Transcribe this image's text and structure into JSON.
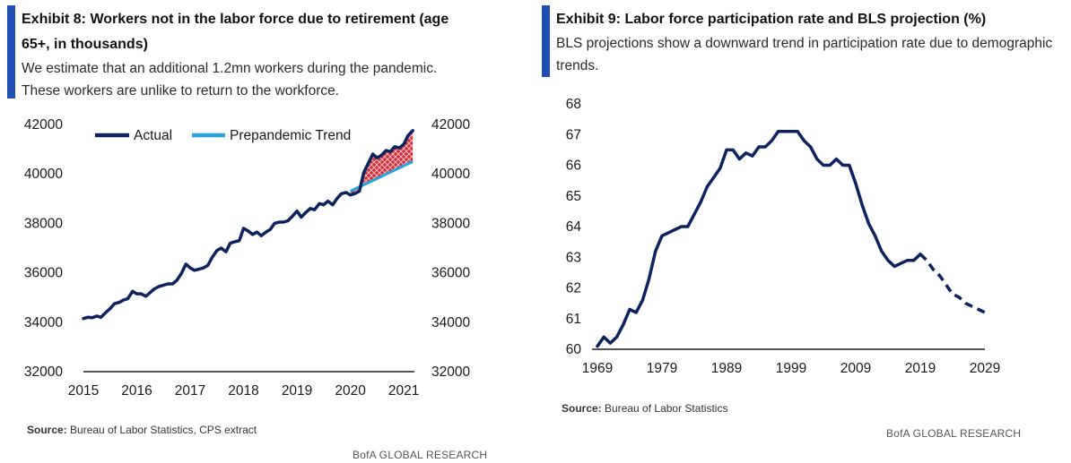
{
  "exhibit8": {
    "title": "Exhibit 8: Workers not in the labor force due to retirement (age 65+, in thousands)",
    "subtitle": "We estimate that an additional 1.2mn workers during the pandemic. These workers are unlike to return to the workforce.",
    "source_label": "Source:",
    "source_text": "Bureau of Labor Statistics, CPS extract",
    "brand": "BofA GLOBAL RESEARCH"
  },
  "exhibit9": {
    "title": "Exhibit 9: Labor force participation rate and BLS projection (%)",
    "subtitle": "BLS projections show a downward trend in participation rate due to demographic trends.",
    "source_label": "Source:",
    "source_text": "Bureau of Labor Statistics",
    "brand": "BofA GLOBAL RESEARCH"
  },
  "colors": {
    "actual": "#0d2260",
    "trend": "#27a4dc",
    "fill_red": "#d42a35",
    "accent": "#1f4fb4"
  },
  "chart_data": [
    {
      "type": "line",
      "ylim": [
        32000,
        42000
      ],
      "yticks": [
        "32000",
        "34000",
        "36000",
        "38000",
        "40000",
        "42000"
      ],
      "xlim": [
        2015,
        2021.2
      ],
      "xticks": [
        "2015",
        "2016",
        "2017",
        "2018",
        "2019",
        "2020",
        "2021"
      ],
      "legend": "top-left",
      "grid": false,
      "series": [
        {
          "name": "Actual",
          "x": [
            2015.0,
            2015.08,
            2015.17,
            2015.25,
            2015.33,
            2015.42,
            2015.5,
            2015.58,
            2015.67,
            2015.75,
            2015.83,
            2015.92,
            2016.0,
            2016.08,
            2016.17,
            2016.25,
            2016.33,
            2016.42,
            2016.5,
            2016.58,
            2016.67,
            2016.75,
            2016.83,
            2016.92,
            2017.0,
            2017.08,
            2017.17,
            2017.25,
            2017.33,
            2017.42,
            2017.5,
            2017.58,
            2017.67,
            2017.75,
            2017.83,
            2017.92,
            2018.0,
            2018.08,
            2018.17,
            2018.25,
            2018.33,
            2018.42,
            2018.5,
            2018.58,
            2018.67,
            2018.75,
            2018.83,
            2018.92,
            2019.0,
            2019.08,
            2019.17,
            2019.25,
            2019.33,
            2019.42,
            2019.5,
            2019.58,
            2019.67,
            2019.75,
            2019.83,
            2019.92,
            2020.0,
            2020.08,
            2020.17,
            2020.25,
            2020.33,
            2020.42,
            2020.5,
            2020.58,
            2020.67,
            2020.75,
            2020.83,
            2020.92,
            2021.0,
            2021.08,
            2021.17
          ],
          "values": [
            34150,
            34200,
            34180,
            34250,
            34200,
            34400,
            34550,
            34750,
            34800,
            34900,
            34950,
            35250,
            35150,
            35150,
            35050,
            35200,
            35350,
            35450,
            35500,
            35550,
            35550,
            35700,
            35950,
            36350,
            36200,
            36100,
            36150,
            36200,
            36300,
            36650,
            36900,
            37000,
            36850,
            37200,
            37250,
            37300,
            37800,
            37700,
            37550,
            37650,
            37500,
            37650,
            37750,
            38000,
            38050,
            38050,
            38100,
            38300,
            38500,
            38250,
            38450,
            38600,
            38550,
            38800,
            38750,
            38900,
            38750,
            39000,
            39200,
            39250,
            39150,
            39200,
            39300,
            40050,
            40400,
            40800,
            40650,
            40750,
            40950,
            40900,
            41100,
            41050,
            41200,
            41550,
            41750
          ]
        },
        {
          "name": "Prepandemic Trend",
          "x": [
            2020.0,
            2021.17
          ],
          "values": [
            39300,
            40500
          ]
        }
      ]
    },
    {
      "type": "line",
      "ylim": [
        60,
        68
      ],
      "yticks": [
        "60",
        "61",
        "62",
        "63",
        "64",
        "65",
        "66",
        "67",
        "68"
      ],
      "xlim": [
        1969,
        2029
      ],
      "xticks": [
        "1969",
        "1979",
        "1989",
        "1999",
        "2009",
        "2019",
        "2029"
      ],
      "grid": false,
      "series": [
        {
          "name": "",
          "x": [
            1969,
            1970,
            1971,
            1972,
            1973,
            1974,
            1975,
            1976,
            1977,
            1978,
            1979,
            1980,
            1981,
            1982,
            1983,
            1984,
            1985,
            1986,
            1987,
            1988,
            1989,
            1990,
            1991,
            1992,
            1993,
            1994,
            1995,
            1996,
            1997,
            1998,
            1999,
            2000,
            2001,
            2002,
            2003,
            2004,
            2005,
            2006,
            2007,
            2008,
            2009,
            2010,
            2011,
            2012,
            2013,
            2014,
            2015,
            2016,
            2017,
            2018,
            2019
          ],
          "values": [
            60.1,
            60.4,
            60.2,
            60.4,
            60.8,
            61.3,
            61.2,
            61.6,
            62.3,
            63.2,
            63.7,
            63.8,
            63.9,
            64.0,
            64.0,
            64.4,
            64.8,
            65.3,
            65.6,
            65.9,
            66.5,
            66.5,
            66.2,
            66.4,
            66.3,
            66.6,
            66.6,
            66.8,
            67.1,
            67.1,
            67.1,
            67.1,
            66.8,
            66.6,
            66.2,
            66.0,
            66.0,
            66.2,
            66.0,
            66.0,
            65.4,
            64.7,
            64.1,
            63.7,
            63.2,
            62.9,
            62.7,
            62.8,
            62.9,
            62.9,
            63.1
          ]
        },
        {
          "name": "",
          "dashed": true,
          "x": [
            2019,
            2020,
            2021,
            2022,
            2023,
            2024,
            2025,
            2026,
            2027,
            2028,
            2029
          ],
          "values": [
            63.1,
            62.9,
            62.6,
            62.4,
            62.1,
            61.8,
            61.7,
            61.5,
            61.4,
            61.3,
            61.2
          ]
        }
      ]
    }
  ]
}
